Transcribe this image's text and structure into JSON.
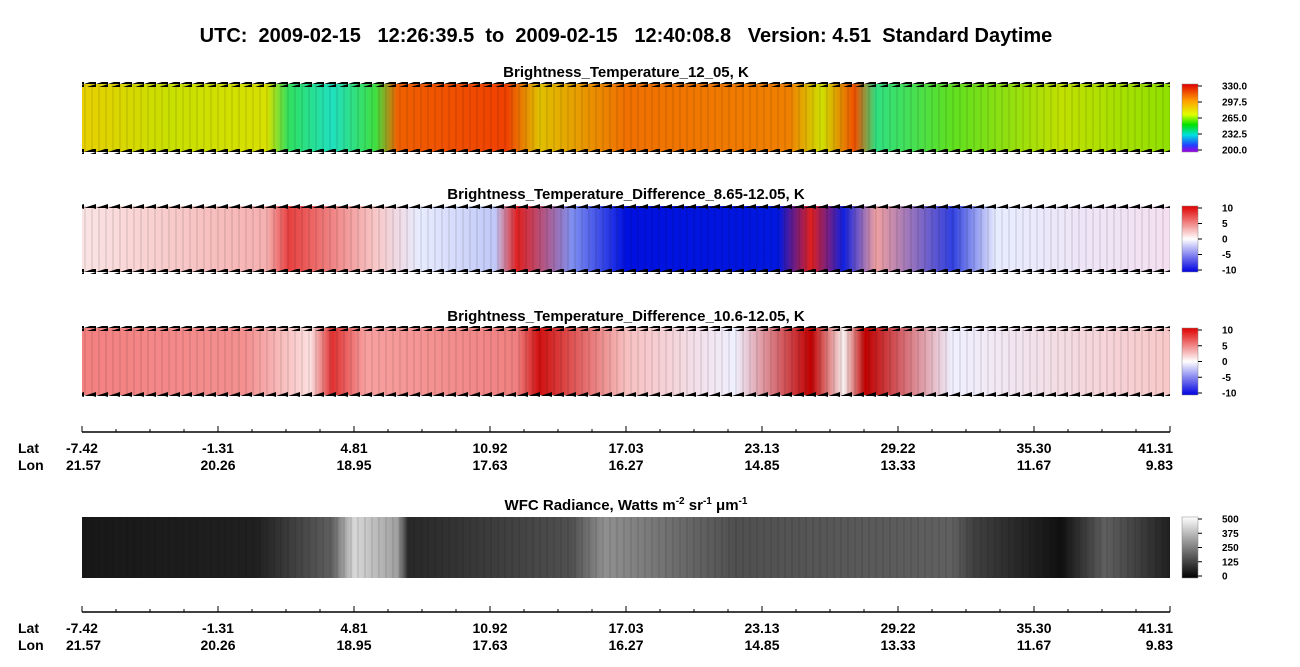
{
  "title": "UTC:  2009-02-15   12:26:39.5  to  2009-02-15   12:40:08.8   Version: 4.51  Standard Daytime",
  "panels": [
    {
      "title": "Brightness_Temperature_12_05, K",
      "colorbar": [
        "330.0",
        "297.5",
        "265.0",
        "232.5",
        "200.0"
      ]
    },
    {
      "title": "Brightness_Temperature_Difference_8.65-12.05, K",
      "colorbar": [
        "10",
        "5",
        "0",
        "-5",
        "-10"
      ]
    },
    {
      "title": "Brightness_Temperature_Difference_10.6-12.05, K",
      "colorbar": [
        "10",
        "5",
        "0",
        "-5",
        "-10"
      ]
    }
  ],
  "wfc": {
    "title_parts": [
      "WFC Radiance, Watts m",
      "-2",
      " sr",
      "-1",
      " μm",
      "-1"
    ],
    "colorbar": [
      "500",
      "375",
      "250",
      "125",
      "0"
    ]
  },
  "axis": {
    "row_labels": [
      "Lat",
      "Lon"
    ],
    "lat": [
      "-7.42",
      "-1.31",
      "4.81",
      "10.92",
      "17.03",
      "23.13",
      "29.22",
      "35.30",
      "41.31"
    ],
    "lon": [
      "21.57",
      "20.26",
      "18.95",
      "17.63",
      "16.27",
      "14.85",
      "13.33",
      "11.67",
      "9.83"
    ]
  }
}
